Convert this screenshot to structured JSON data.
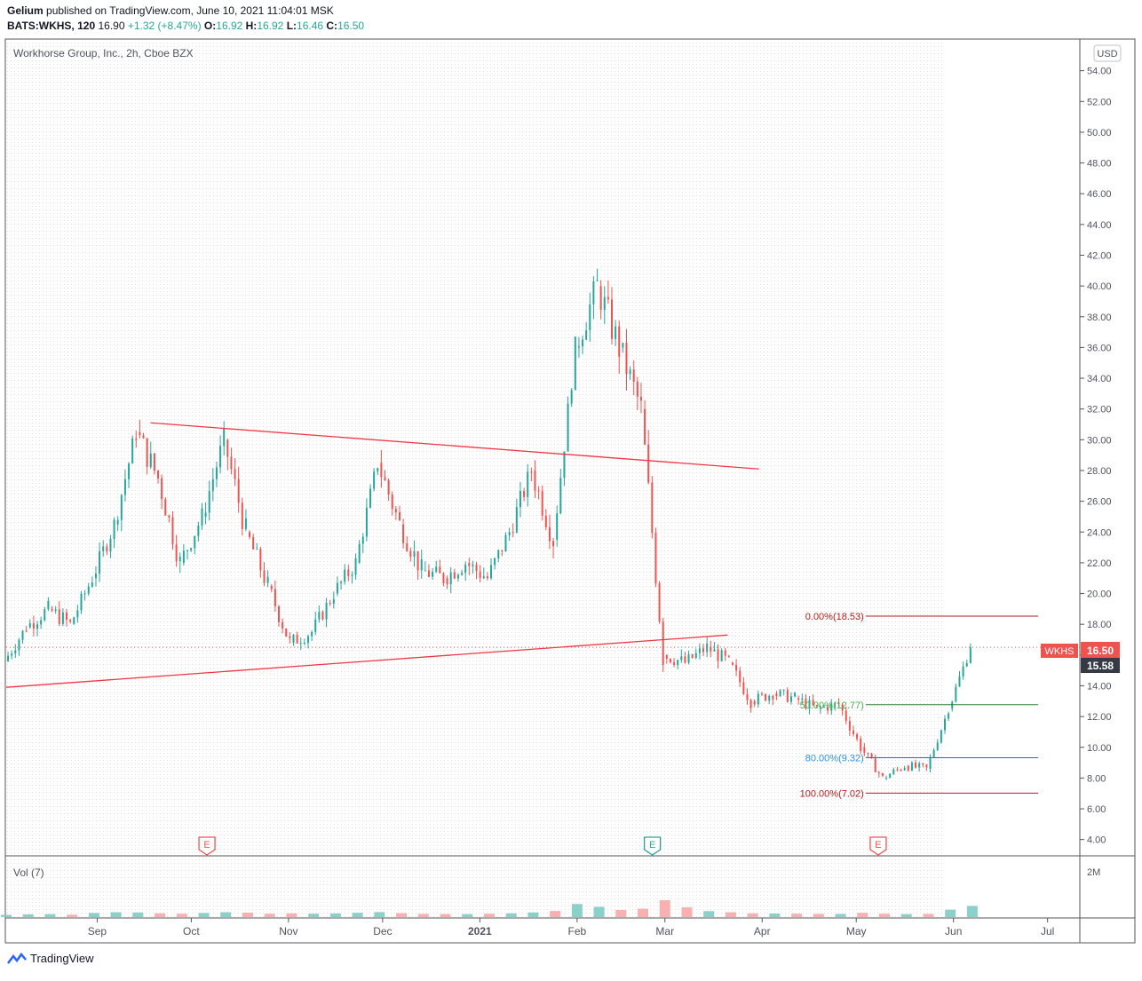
{
  "header": {
    "publisher": "Gelium",
    "published_text": "published on TradingView.com, June 10, 2021 11:04:01 MSK",
    "symbol_interval": "BATS:WKHS, 120",
    "last": "16.90",
    "change": "+1.32 (+8.47%)",
    "o_label": "O:",
    "o_val": "16.92",
    "h_label": "H:",
    "h_val": "16.92",
    "l_label": "L:",
    "l_val": "16.46",
    "c_label": "C:",
    "c_val": "16.50"
  },
  "chart": {
    "title": "Workhorse Group, Inc., 2h, Cboe BZX",
    "currency": "USD",
    "volume_label": "Vol (7)",
    "volume_tick": "2M",
    "price_tag_symbol": "WKHS",
    "price_tag_value": "16.50",
    "second_tag_value": "15.58",
    "earnings_marker": "E",
    "y_ticks": [
      "54.00",
      "52.00",
      "50.00",
      "48.00",
      "46.00",
      "44.00",
      "42.00",
      "40.00",
      "38.00",
      "36.00",
      "34.00",
      "32.00",
      "30.00",
      "28.00",
      "26.00",
      "24.00",
      "22.00",
      "20.00",
      "18.00",
      "16.00",
      "14.00",
      "12.00",
      "10.00",
      "8.00",
      "6.00",
      "4.00"
    ],
    "x_ticks": [
      "Sep",
      "Oct",
      "Nov",
      "Dec",
      "2021",
      "Feb",
      "Mar",
      "Apr",
      "May",
      "Jun",
      "Jul"
    ],
    "fib_labels": [
      "0.00%(18.53)",
      "50.00%(12.77)",
      "80.00%(9.32)",
      "100.00%(7.02)"
    ]
  },
  "chart_data": {
    "type": "candlestick",
    "title": "Workhorse Group, Inc., 2h, Cboe BZX",
    "ylim": [
      3.0,
      56.0
    ],
    "x_range": [
      "2020-08-03",
      "2021-07-11"
    ],
    "series": [
      {
        "name": "WKHS",
        "x": [
          "2020-08-03",
          "2020-08-10",
          "2020-08-17",
          "2020-08-24",
          "2020-08-31",
          "2020-09-07",
          "2020-09-14",
          "2020-09-21",
          "2020-09-28",
          "2020-10-05",
          "2020-10-12",
          "2020-10-19",
          "2020-10-26",
          "2020-11-02",
          "2020-11-09",
          "2020-11-16",
          "2020-11-23",
          "2020-11-30",
          "2020-12-07",
          "2020-12-14",
          "2020-12-21",
          "2020-12-28",
          "2021-01-04",
          "2021-01-11",
          "2021-01-18",
          "2021-01-25",
          "2021-02-01",
          "2021-02-08",
          "2021-02-15",
          "2021-02-22",
          "2021-03-01",
          "2021-03-08",
          "2021-03-15",
          "2021-03-22",
          "2021-03-29",
          "2021-04-05",
          "2021-04-12",
          "2021-04-19",
          "2021-04-26",
          "2021-05-03",
          "2021-05-10",
          "2021-05-17",
          "2021-05-24",
          "2021-05-31",
          "2021-06-07"
        ],
        "values": [
          15.6,
          17.8,
          19.0,
          18.0,
          21.0,
          24.5,
          30.5,
          27.5,
          22.0,
          25.0,
          30.0,
          24.0,
          20.5,
          16.8,
          17.5,
          20.0,
          22.0,
          28.5,
          24.5,
          21.5,
          21.0,
          22.0,
          21.0,
          24.0,
          28.0,
          23.5,
          36.0,
          40.0,
          36.0,
          32.0,
          16.0,
          15.5,
          16.5,
          15.5,
          13.0,
          13.5,
          13.2,
          12.5,
          12.8,
          10.0,
          8.0,
          8.8,
          8.6,
          12.5,
          16.5
        ]
      }
    ],
    "trendlines": [
      {
        "from": [
          "2020-08-03",
          13.9
        ],
        "to": [
          "2021-03-21",
          17.3
        ]
      },
      {
        "from": [
          "2020-09-18",
          31.1
        ],
        "to": [
          "2021-03-31",
          28.1
        ]
      }
    ],
    "fibonacci": [
      {
        "level": "0.00%",
        "price": 18.53
      },
      {
        "level": "50.00%",
        "price": 12.77
      },
      {
        "level": "80.00%",
        "price": 9.32
      },
      {
        "level": "100.00%",
        "price": 7.02
      }
    ],
    "last_price": 16.5,
    "volume": {
      "ylim": [
        0,
        3000000
      ],
      "values": [
        120000,
        150000,
        160000,
        130000,
        220000,
        260000,
        250000,
        200000,
        180000,
        220000,
        260000,
        240000,
        180000,
        200000,
        180000,
        200000,
        230000,
        270000,
        210000,
        170000,
        160000,
        160000,
        180000,
        200000,
        250000,
        330000,
        700000,
        550000,
        380000,
        450000,
        900000,
        520000,
        320000,
        260000,
        200000,
        190000,
        180000,
        170000,
        170000,
        230000,
        180000,
        160000,
        170000,
        400000,
        600000
      ]
    }
  }
}
